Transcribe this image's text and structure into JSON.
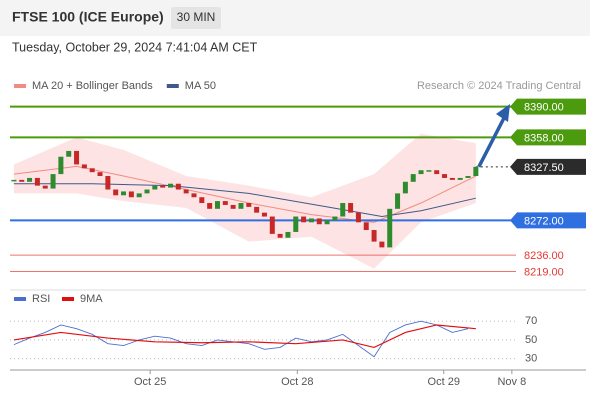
{
  "header": {
    "title": "FTSE 100 (ICE Europe)",
    "interval": "30 MIN",
    "timestamp": "Tuesday, October 29, 2024 7:41:04 AM CET"
  },
  "chart_data": [
    {
      "type": "candlestick",
      "credit": "Research © 2024 Trading Central",
      "up_color": "#2e8b2e",
      "down_color": "#c62828",
      "close": [
        8314,
        8312,
        8316,
        8308,
        8305,
        8320,
        8338,
        8344,
        8330,
        8326,
        8322,
        8318,
        8304,
        8298,
        8302,
        8296,
        8300,
        8304,
        8308,
        8306,
        8310,
        8304,
        8300,
        8296,
        8290,
        8284,
        8292,
        8288,
        8284,
        8290,
        8286,
        8280,
        8276,
        8258,
        8254,
        8260,
        8276,
        8270,
        8274,
        8268,
        8272,
        8276,
        8290,
        8280,
        8270,
        8262,
        8250,
        8244,
        8284,
        8300,
        8312,
        8320,
        8324,
        8324,
        8320,
        8316,
        8314,
        8316,
        8318,
        8327.5
      ],
      "xlim": [
        -0.5,
        64
      ],
      "ylim": [
        8205,
        8402
      ],
      "overlays": [
        {
          "name": "MA 20 + Bollinger Bands",
          "color": "#f28b82",
          "band_color": "#fde0e0",
          "x": [
            0,
            8,
            14,
            22,
            30,
            38,
            46,
            52,
            59
          ],
          "values": [
            8320,
            8328,
            8318,
            8304,
            8290,
            8278,
            8270,
            8290,
            8318
          ],
          "upper": [
            8330,
            8358,
            8345,
            8318,
            8308,
            8296,
            8320,
            8362,
            8352
          ],
          "lower": [
            8300,
            8300,
            8292,
            8285,
            8250,
            8255,
            8222,
            8270,
            8290
          ]
        },
        {
          "name": "MA 50",
          "color": "#3d5a8a",
          "x": [
            0,
            10,
            20,
            30,
            40,
            47,
            52,
            59
          ],
          "values": [
            8310,
            8310,
            8308,
            8300,
            8286,
            8276,
            8282,
            8295
          ]
        }
      ],
      "levels": [
        {
          "value": 8390,
          "label": "8390.00",
          "color": "#4c9a0e",
          "boxed": true,
          "line_style": "solid"
        },
        {
          "value": 8358,
          "label": "8358.00",
          "color": "#4c9a0e",
          "boxed": true,
          "line_style": "solid"
        },
        {
          "value": 8327.5,
          "label": "8327.50",
          "color": "#2b2b2b",
          "boxed": true,
          "line_style": "dotted"
        },
        {
          "value": 8272,
          "label": "8272.00",
          "color": "#2f6fe0",
          "boxed": true,
          "line_style": "solid"
        },
        {
          "value": 8236,
          "label": "8236.00",
          "color": "#e53935",
          "boxed": false,
          "line_style": "thin"
        },
        {
          "value": 8219,
          "label": "8219.00",
          "color": "#e53935",
          "boxed": false,
          "line_style": "thin"
        }
      ]
    },
    {
      "type": "line",
      "xlim": [
        -0.5,
        64
      ],
      "ylim": [
        20,
        82
      ],
      "yticks": [
        30,
        50,
        70
      ],
      "xticks": [
        {
          "value": 17.4,
          "label": "Oct 25"
        },
        {
          "value": 36.2,
          "label": "Oct 28"
        },
        {
          "value": 54.9,
          "label": "Oct 29"
        },
        {
          "value": 63.6,
          "label": "Nov 8"
        }
      ],
      "series": [
        {
          "name": "RSI",
          "color": "#4a6fd0",
          "x": [
            0,
            2,
            4,
            6,
            8,
            10,
            12,
            14,
            16,
            18,
            20,
            22,
            24,
            26,
            28,
            30,
            32,
            34,
            36,
            38,
            40,
            42,
            44,
            46,
            48,
            50,
            52,
            54,
            56,
            58
          ],
          "values": [
            45,
            52,
            58,
            66,
            62,
            56,
            46,
            44,
            50,
            54,
            52,
            46,
            44,
            50,
            48,
            46,
            40,
            42,
            52,
            48,
            50,
            56,
            44,
            32,
            58,
            66,
            70,
            66,
            58,
            62
          ]
        },
        {
          "name": "9MA",
          "color": "#e01010",
          "x": [
            0,
            6,
            12,
            18,
            24,
            30,
            36,
            42,
            46,
            50,
            54,
            59
          ],
          "values": [
            50,
            58,
            52,
            48,
            47,
            48,
            46,
            50,
            42,
            58,
            66,
            62
          ]
        }
      ]
    }
  ]
}
